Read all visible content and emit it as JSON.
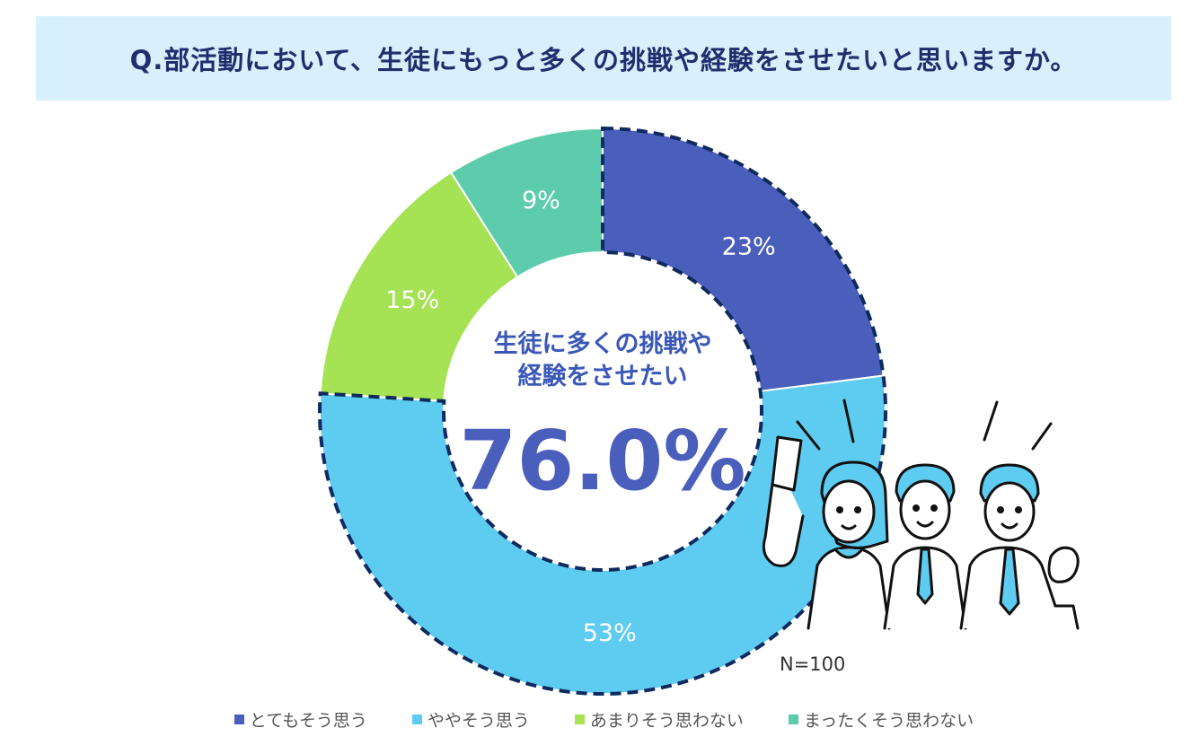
{
  "title": "Q.部活動において、生徒にもっと多くの挑戦や経験をさせたいと思いますか。",
  "center": {
    "line1": "生徒に多くの挑戦や",
    "line2": "経験をさせたい",
    "value": "76.0%"
  },
  "sample_note": "N=100",
  "chart_data": {
    "type": "pie",
    "donut": true,
    "title": "Q.部活動において、生徒にもっと多くの挑戦や経験をさせたいと思いますか。",
    "categories": [
      "とてもそう思う",
      "ややそう思う",
      "あまりそう思わない",
      "まったくそう思わない"
    ],
    "values": [
      23,
      53,
      15,
      9
    ],
    "labels": [
      "23%",
      "53%",
      "15%",
      "9%"
    ],
    "colors": [
      "#4a5fbc",
      "#5ecbf0",
      "#a5e254",
      "#5cccac"
    ],
    "highlighted_categories": [
      "とてもそう思う",
      "ややそう思う"
    ],
    "highlight_total": "76.0%",
    "legend_position": "bottom"
  }
}
